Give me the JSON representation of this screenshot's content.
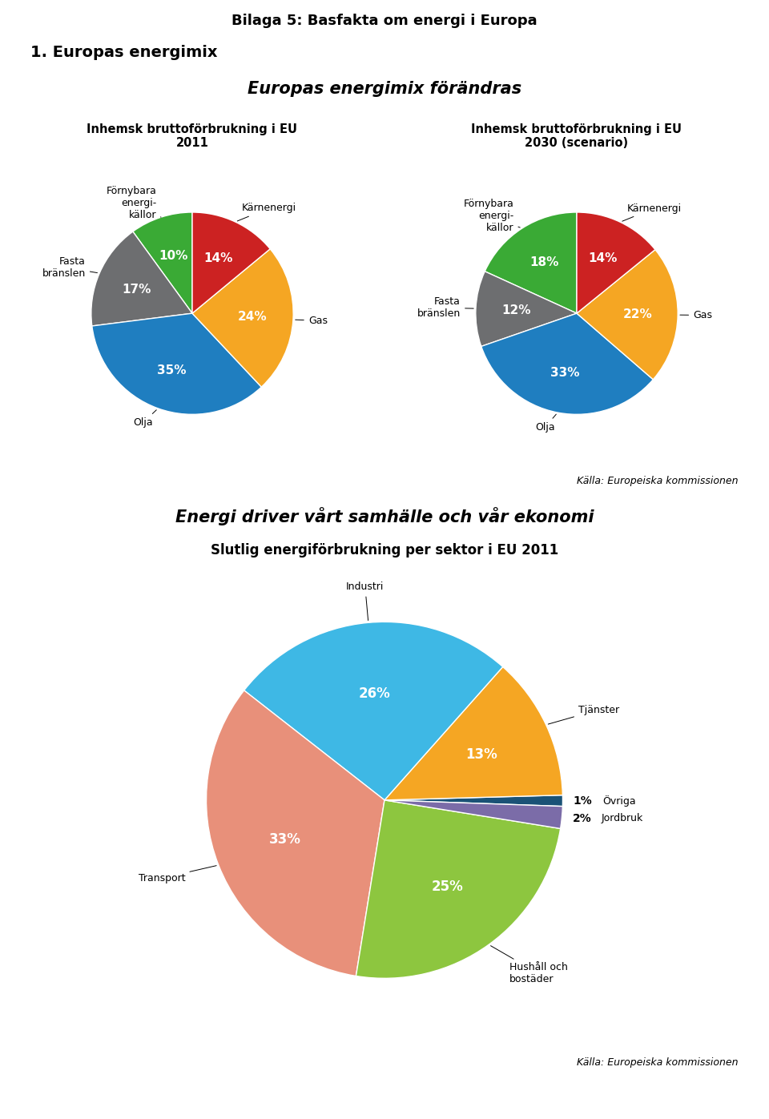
{
  "title": "Bilaga 5: Basfakta om energi i Europa",
  "sections": [
    {
      "title": "1. Europas energimix",
      "subtitle": "Europas energimix förändras",
      "source": "Källa: Europeiska kommissionen"
    },
    {
      "title": "Energi driver vårt samhälle och vår ekonomi",
      "source": "Källa: Europeiska kommissionen"
    }
  ],
  "chart_data": [
    {
      "type": "pie",
      "title": "Inhemsk bruttoförbrukning i EU\n2011",
      "categories": [
        "Förnybara\nenergi-\nkällor",
        "Fasta\nbränslen",
        "Olja",
        "Gas",
        "Kärnenergi"
      ],
      "values": [
        10,
        17,
        35,
        24,
        14
      ],
      "value_labels": [
        "10%",
        "17%",
        "35%",
        "24%",
        "14%"
      ],
      "colors": [
        "#3aaa35",
        "#6d6e70",
        "#1f7ec0",
        "#f5a623",
        "#cc2222"
      ],
      "data_labels": true
    },
    {
      "type": "pie",
      "title": "Inhemsk bruttoförbrukning i EU\n2030 (scenario)",
      "categories": [
        "Förnybara\nenergi-\nkällor",
        "Fasta\nbränslen",
        "Olja",
        "Gas",
        "Kärnenergi"
      ],
      "values": [
        18,
        12,
        33,
        22,
        14
      ],
      "value_labels": [
        "18%",
        "12%",
        "33%",
        "22%",
        "14%"
      ],
      "colors": [
        "#3aaa35",
        "#6d6e70",
        "#1f7ec0",
        "#f5a623",
        "#cc2222"
      ],
      "data_labels": true
    },
    {
      "type": "pie",
      "title": "Slutlig energiförbrukning per sektor i EU 2011",
      "categories": [
        "Övriga",
        "Tjänster",
        "Industri",
        "Transport",
        "Hushåll och\nbostäder",
        "Jordbruk"
      ],
      "values": [
        1,
        13,
        26,
        33,
        25,
        2
      ],
      "value_labels": [
        "1%",
        "13%",
        "26%",
        "33%",
        "25%",
        "2%"
      ],
      "colors": [
        "#1a5276",
        "#f5a623",
        "#3eb8e5",
        "#e8907a",
        "#8dc63f",
        "#7b6ca8"
      ],
      "data_labels": true
    }
  ]
}
